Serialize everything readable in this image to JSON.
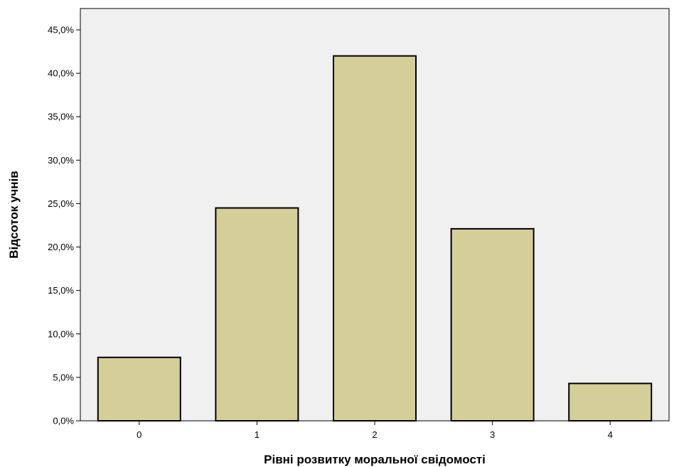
{
  "chart_data": {
    "type": "bar",
    "title": "",
    "xlabel": "Рівні розвитку моральної свідомості",
    "ylabel": "Відсоток учнів",
    "categories": [
      "0",
      "1",
      "2",
      "3",
      "4"
    ],
    "values": [
      7.3,
      24.5,
      42.0,
      22.1,
      4.3
    ],
    "value_unit": "%",
    "ylim": [
      0,
      45
    ],
    "y_ticks": [
      0,
      5,
      10,
      15,
      20,
      25,
      30,
      35,
      40,
      45
    ],
    "y_tick_labels": [
      "0,0%",
      "5,0%",
      "10,0%",
      "15,0%",
      "20,0%",
      "25,0%",
      "30,0%",
      "35,0%",
      "40,0%",
      "45,0%"
    ],
    "grid": false,
    "legend": "none",
    "colors": {
      "plot_background": "#f0f0f0",
      "bar_fill": "#d4cf98",
      "bar_stroke": "#000000"
    }
  }
}
